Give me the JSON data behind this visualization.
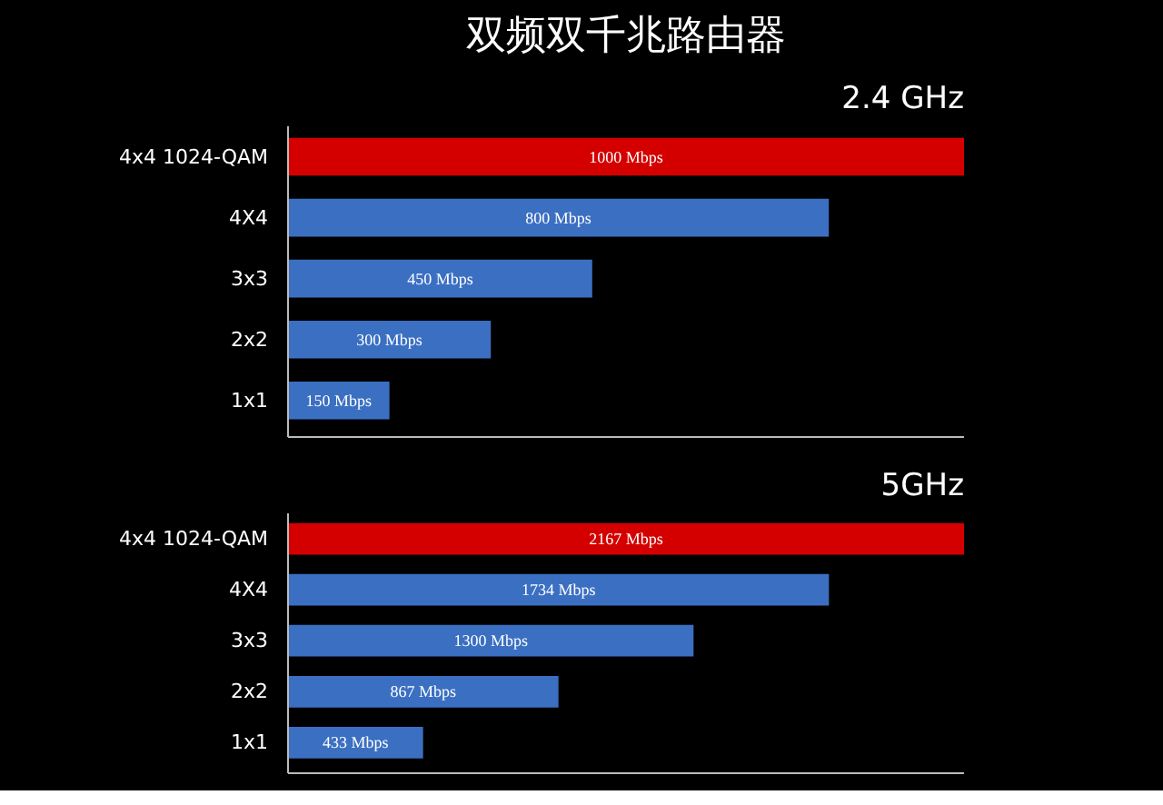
{
  "chart_data": [
    {
      "type": "bar",
      "orientation": "horizontal",
      "title": "双频双千兆路由器",
      "subtitle": "2.4 GHz",
      "categories": [
        "4x4 1024-QAM",
        "4X4",
        "3x3",
        "2x2",
        "1x1"
      ],
      "values": [
        1000,
        800,
        450,
        300,
        150
      ],
      "value_labels": [
        "1000 Mbps",
        "800 Mbps",
        "450 Mbps",
        "300 Mbps",
        "150 Mbps"
      ],
      "colors": [
        "#d40000",
        "#3b6fc2",
        "#3b6fc2",
        "#3b6fc2",
        "#3b6fc2"
      ],
      "tick_labels": "y"
    },
    {
      "type": "bar",
      "orientation": "horizontal",
      "title": "5GHz",
      "categories": [
        "4x4 1024-QAM",
        "4X4",
        "3x3",
        "2x2",
        "1x1"
      ],
      "values": [
        2167,
        1734,
        1300,
        867,
        433
      ],
      "value_labels": [
        "2167 Mbps",
        "1734 Mbps",
        "1300 Mbps",
        "867 Mbps",
        "433 Mbps"
      ],
      "colors": [
        "#d40000",
        "#3b6fc2",
        "#3b6fc2",
        "#3b6fc2",
        "#3b6fc2"
      ],
      "tick_labels": "y"
    }
  ]
}
